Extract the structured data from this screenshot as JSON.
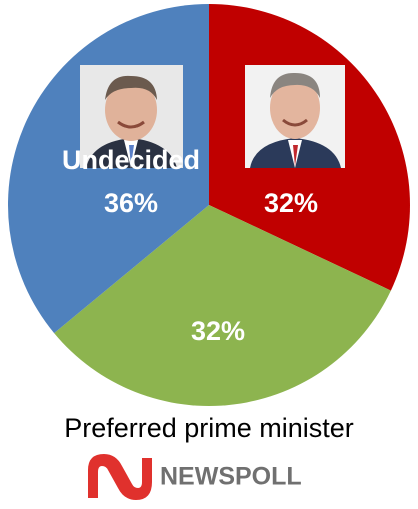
{
  "chart_data": {
    "type": "pie",
    "title": "Preferred prime minister",
    "categories": [
      null,
      null,
      "Undecided"
    ],
    "values": [
      32,
      32,
      36
    ],
    "value_labels": [
      "32%",
      "32%",
      "36%"
    ],
    "colors": [
      "#c00000",
      "#8db44f",
      "#4f81bd"
    ],
    "source": "NEWSPOLL"
  }
}
